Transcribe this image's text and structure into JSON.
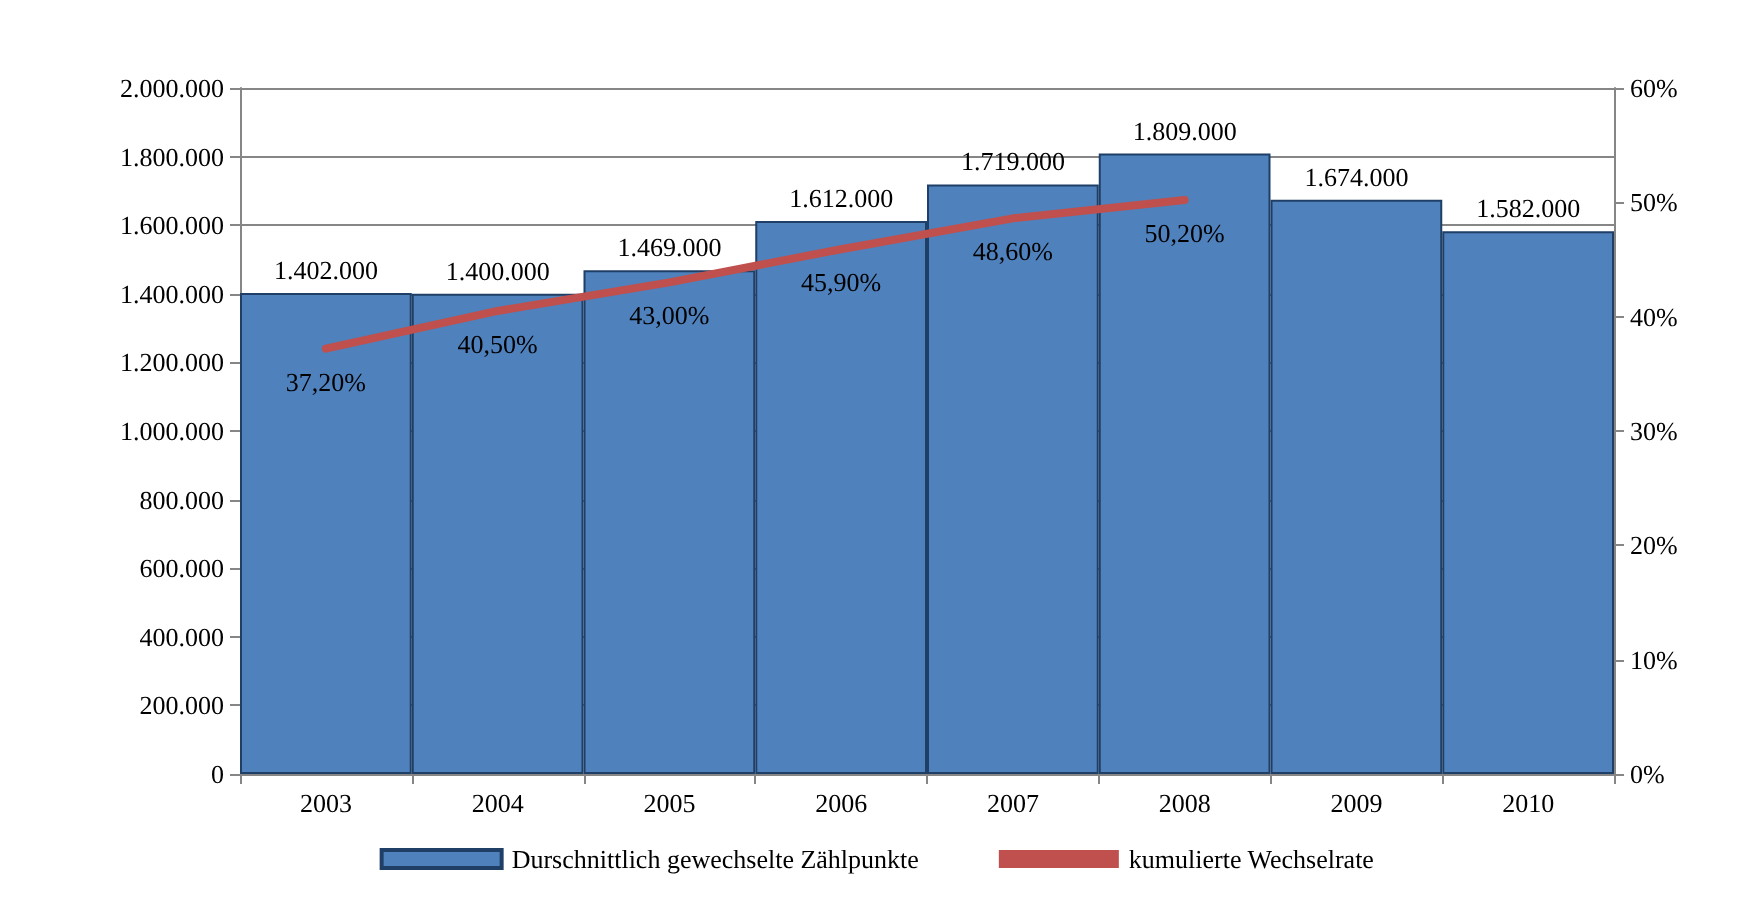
{
  "chart_data": {
    "type": "bar",
    "categories": [
      "2003",
      "2004",
      "2005",
      "2006",
      "2007",
      "2008",
      "2009",
      "2010"
    ],
    "series": [
      {
        "name": "Durschnittlich gewechselte Zählpunkte",
        "color": "#4f81bd",
        "values": [
          1402000,
          1400000,
          1469000,
          1612000,
          1719000,
          1809000,
          1674000,
          1582000
        ],
        "value_labels": [
          "1.402.000",
          "1.400.000",
          "1.469.000",
          "1.612.000",
          "1.719.000",
          "1.809.000",
          "1.674.000",
          "1.582.000"
        ]
      },
      {
        "name": "kumulierte Wechselrate",
        "type": "line",
        "axis": "y2",
        "color": "#c0504d",
        "marker": "none",
        "values": [
          37.2,
          40.5,
          43.0,
          45.9,
          48.6,
          50.2,
          null,
          null
        ],
        "value_labels": [
          "37,20%",
          "40,50%",
          "43,00%",
          "45,90%",
          "48,60%",
          "50,20%",
          null,
          null
        ]
      }
    ],
    "ylim": [
      0,
      2000000
    ],
    "yticks": [
      0,
      {
        "value": 200000,
        "label": "200.000"
      },
      {
        "value": 400000,
        "label": "400.000"
      },
      {
        "value": 600000,
        "label": "600.000"
      },
      {
        "value": 800000,
        "label": "800.000"
      },
      {
        "value": 1000000,
        "label": "1.000.000"
      },
      {
        "value": 1200000,
        "label": "1.200.000"
      },
      {
        "value": 1400000,
        "label": "1.400.000"
      },
      {
        "value": 1600000,
        "label": "1.600.000"
      },
      {
        "value": 1800000,
        "label": "1.800.000"
      },
      {
        "value": 2000000,
        "label": "2.000.000"
      }
    ],
    "y2lim": [
      0,
      60
    ],
    "y2ticks": [
      {
        "value": 0,
        "label": "0%"
      },
      {
        "value": 10,
        "label": "10%"
      },
      {
        "value": 20,
        "label": "20%"
      },
      {
        "value": 30,
        "label": "30%"
      },
      {
        "value": 40,
        "label": "40%"
      },
      {
        "value": 50,
        "label": "50%"
      },
      {
        "value": 60,
        "label": "60%"
      }
    ],
    "grid": "y",
    "legend": "bottom"
  }
}
